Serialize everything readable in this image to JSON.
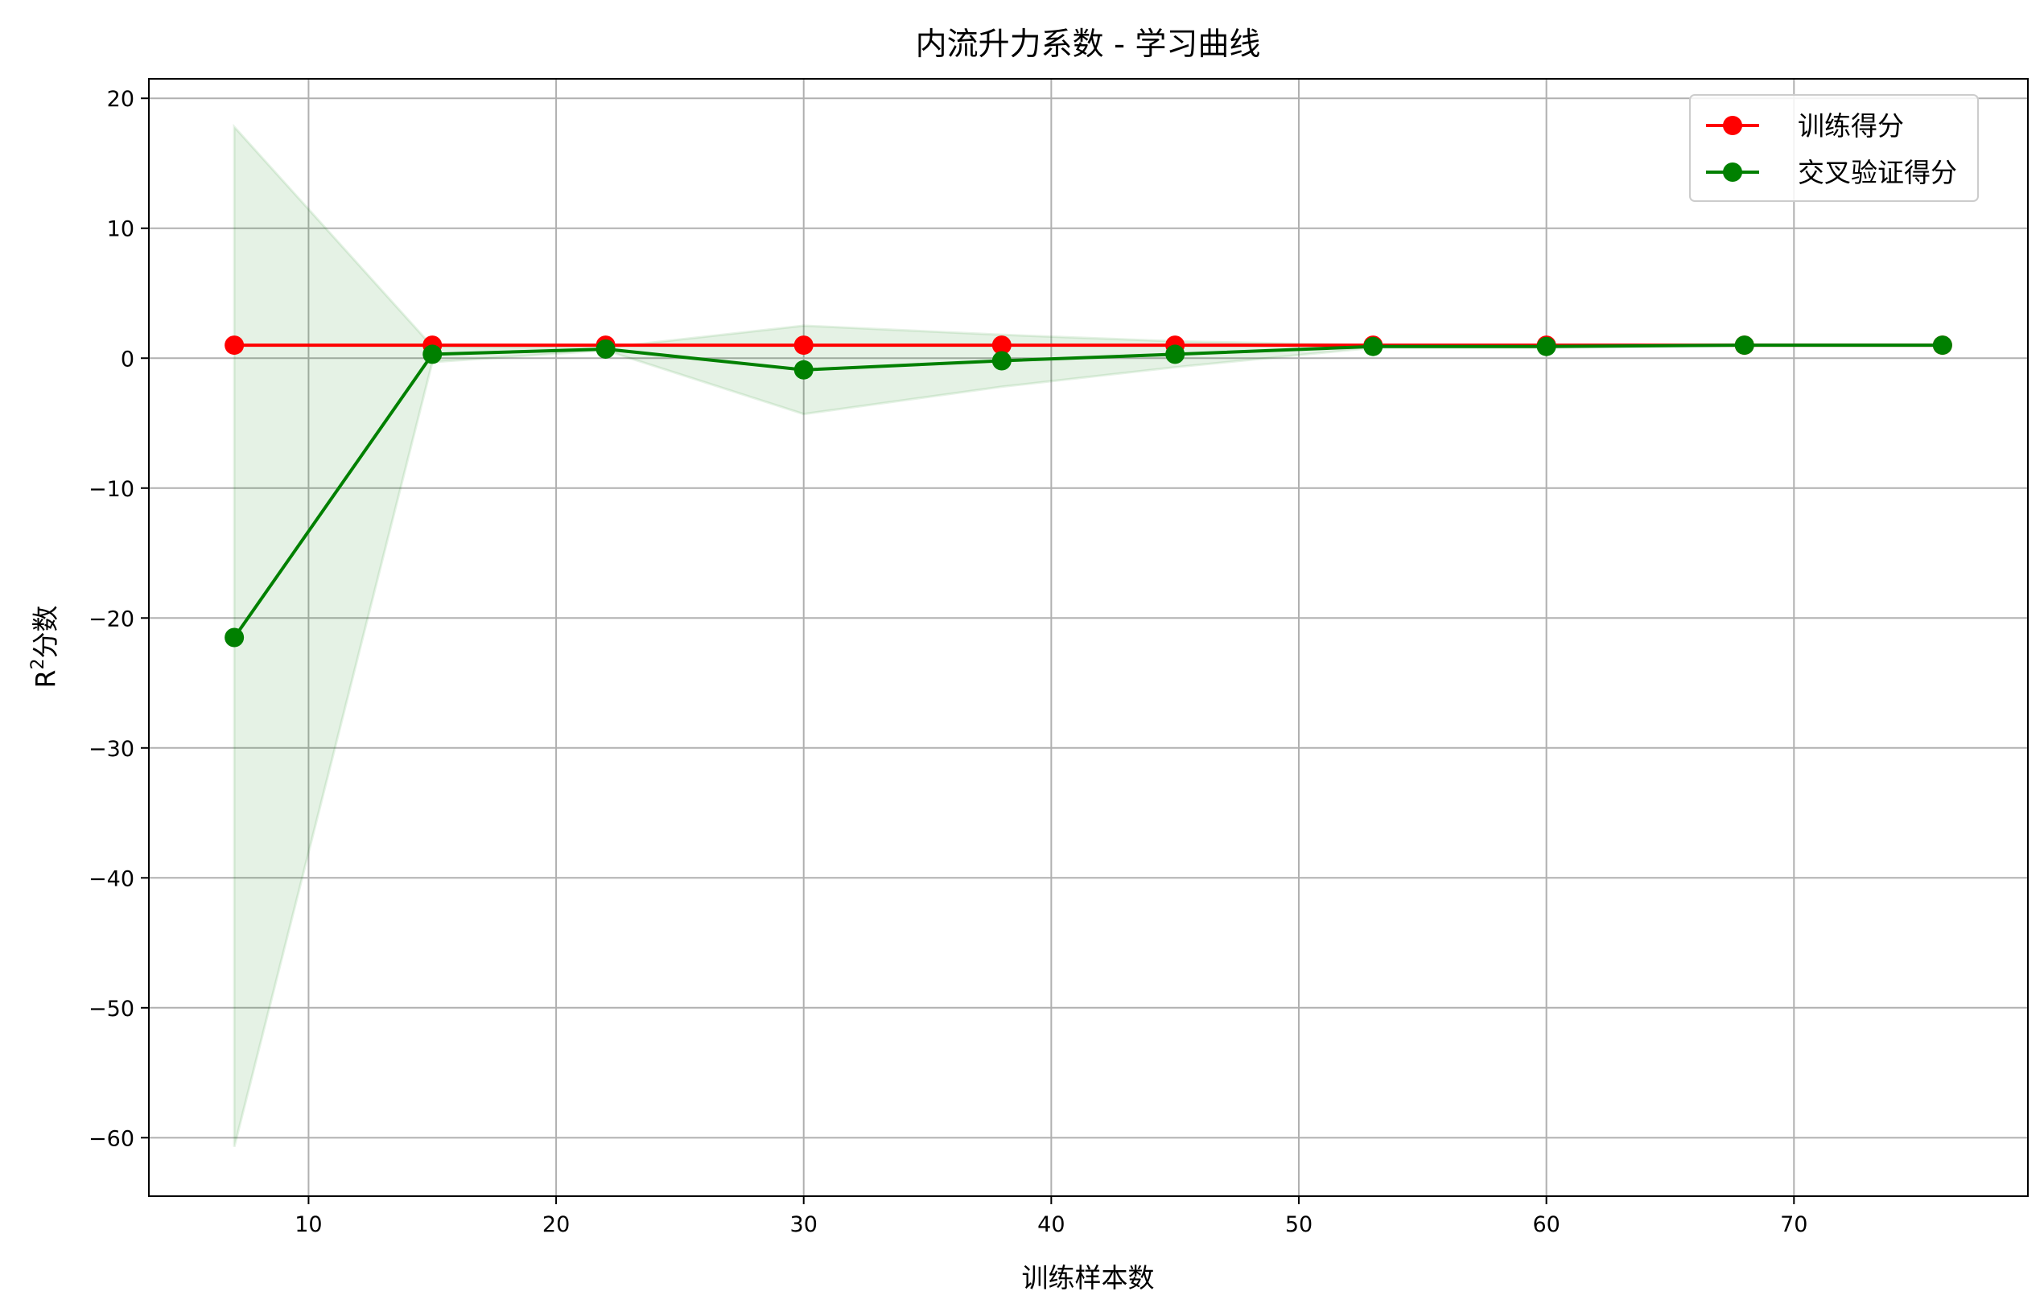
{
  "chart_data": {
    "type": "line",
    "title": "内流升力系数 - 学习曲线",
    "xlabel": "训练样本数",
    "ylabel_base": "R",
    "ylabel_sup": "2",
    "ylabel_rest": "分数",
    "xlim": [
      3.55,
      79.45
    ],
    "ylim": [
      -64.5,
      21.5
    ],
    "xticks": [
      10,
      20,
      30,
      40,
      50,
      60,
      70
    ],
    "yticks": [
      20,
      10,
      0,
      -10,
      -20,
      -30,
      -40,
      -50,
      -60
    ],
    "xtick_labels": [
      "10",
      "20",
      "30",
      "40",
      "50",
      "60",
      "70"
    ],
    "ytick_labels": [
      "20",
      "10",
      "0",
      "−10",
      "−20",
      "−30",
      "−40",
      "−50",
      "−60"
    ],
    "grid": true,
    "legend_position": "top-right",
    "x": [
      7,
      15,
      22,
      30,
      38,
      45,
      53,
      60,
      68,
      76
    ],
    "series": [
      {
        "name": "训练得分",
        "color": "#ff0000",
        "values": [
          1.0,
          1.0,
          1.0,
          1.0,
          1.0,
          1.0,
          1.0,
          1.0,
          1.0,
          1.0
        ]
      },
      {
        "name": "交叉验证得分",
        "color": "#008000",
        "values": [
          -21.5,
          0.3,
          0.7,
          -0.9,
          -0.2,
          0.3,
          0.9,
          0.9,
          1.0,
          1.0
        ],
        "band_upper": [
          17.8,
          0.9,
          0.8,
          2.5,
          1.8,
          1.3,
          1.0,
          1.0,
          1.0,
          1.0
        ],
        "band_lower": [
          -60.7,
          -0.3,
          0.6,
          -4.3,
          -2.2,
          -0.7,
          0.8,
          0.8,
          1.0,
          1.0
        ],
        "band_color": "#008000"
      }
    ]
  }
}
